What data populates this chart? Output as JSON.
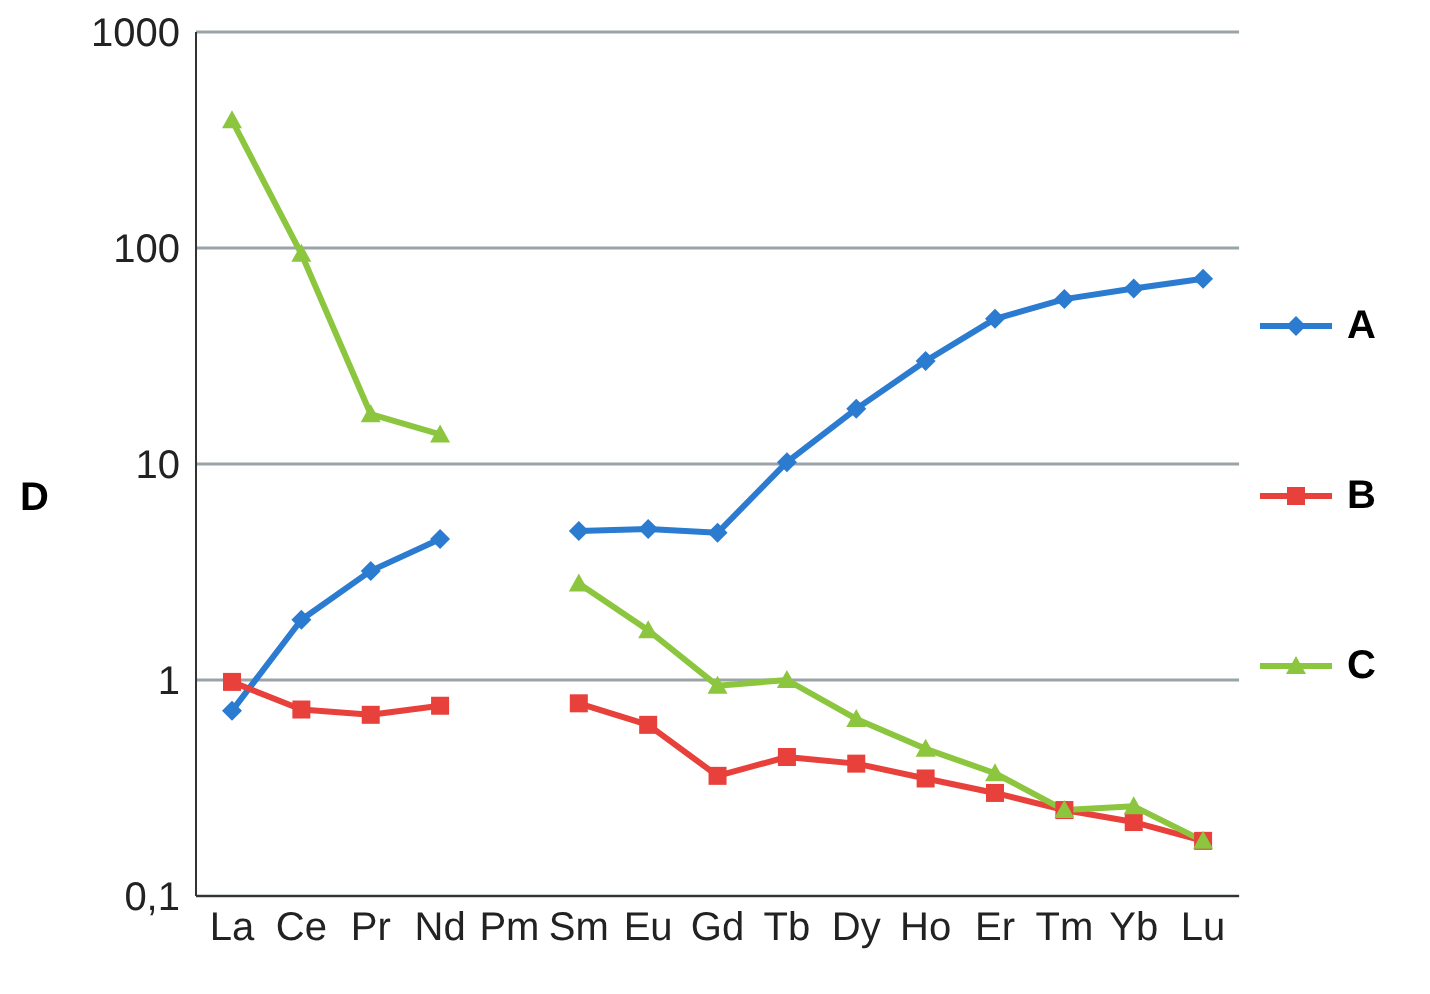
{
  "chart_data": {
    "type": "line",
    "ylabel": "D",
    "categories": [
      "La",
      "Ce",
      "Pr",
      "Nd",
      "Pm",
      "Sm",
      "Eu",
      "Gd",
      "Tb",
      "Dy",
      "Ho",
      "Er",
      "Tm",
      "Yb",
      "Lu"
    ],
    "series": [
      {
        "name": "A",
        "color": "#2b7bd0",
        "marker": "diamond",
        "values": [
          0.72,
          1.9,
          3.2,
          4.5,
          null,
          4.9,
          5.0,
          4.8,
          10.2,
          18,
          30,
          47,
          58,
          65,
          72
        ]
      },
      {
        "name": "B",
        "color": "#e8403a",
        "marker": "square",
        "values": [
          0.98,
          0.73,
          0.69,
          0.76,
          null,
          0.78,
          0.62,
          0.36,
          0.44,
          0.41,
          0.35,
          0.3,
          0.25,
          0.22,
          0.18
        ]
      },
      {
        "name": "C",
        "color": "#8cc63f",
        "marker": "triangle",
        "values": [
          390,
          94,
          17,
          13.7,
          null,
          2.8,
          1.7,
          0.94,
          1.0,
          0.66,
          0.48,
          0.37,
          0.25,
          0.26,
          0.18
        ]
      }
    ],
    "log": true,
    "ylim": [
      0.1,
      1000
    ],
    "yticks": [
      {
        "value": 0.1,
        "label": "0,1"
      },
      1,
      10,
      100,
      1000
    ],
    "grid": "y",
    "legend": "right",
    "line_style": "solid"
  }
}
